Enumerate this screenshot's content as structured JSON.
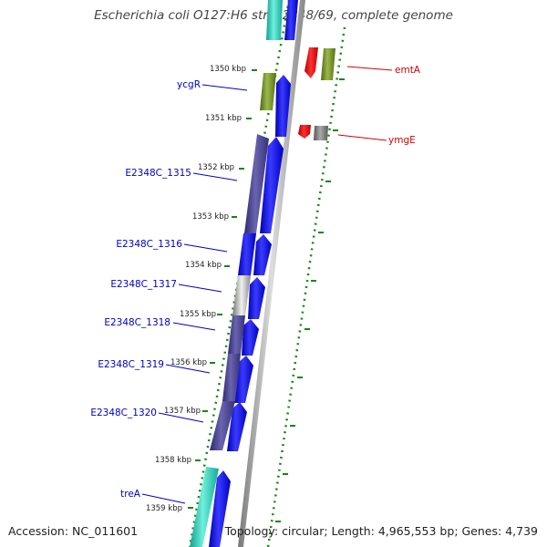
{
  "title": "Escherichia coli O127:H6 str. E2348/69, complete genome",
  "footer": {
    "accession_label": "Accession:",
    "accession": "NC_011601",
    "topology_label": "Topology:",
    "topology": "circular",
    "length_label": "Length:",
    "length": "4,965,553 bp",
    "genes_label": "Genes:",
    "genes": "4,739"
  },
  "ticks": [
    {
      "label": "1350 kbp"
    },
    {
      "label": "1351 kbp"
    },
    {
      "label": "1352 kbp"
    },
    {
      "label": "1353 kbp"
    },
    {
      "label": "1354 kbp"
    },
    {
      "label": "1355 kbp"
    },
    {
      "label": "1356 kbp"
    },
    {
      "label": "1357 kbp"
    },
    {
      "label": "1358 kbp"
    },
    {
      "label": "1359 kbp"
    }
  ],
  "gene_labels": [
    {
      "text": "emtA",
      "color": "#d40000"
    },
    {
      "text": "ymgE",
      "color": "#d40000"
    },
    {
      "text": "ycgR",
      "color": "#0000c8"
    },
    {
      "text": "E2348C_1315",
      "color": "#0000c8"
    },
    {
      "text": "E2348C_1316",
      "color": "#0000c8"
    },
    {
      "text": "E2348C_1317",
      "color": "#0000c8"
    },
    {
      "text": "E2348C_1318",
      "color": "#0000c8"
    },
    {
      "text": "E2348C_1319",
      "color": "#0000c8"
    },
    {
      "text": "E2348C_1320",
      "color": "#0000c8"
    },
    {
      "text": "treA",
      "color": "#0000c8"
    }
  ],
  "colors": {
    "cds_forward": "#0000ff",
    "cds_reverse": "#ff0000",
    "gene_green": "#6b8e23",
    "gene_gray": "#777777",
    "gene_purple": "#4a4494",
    "gene_cyan": "#20c4b0",
    "tick_green": "#118811",
    "backbone": "#999999",
    "title": "#444444"
  }
}
